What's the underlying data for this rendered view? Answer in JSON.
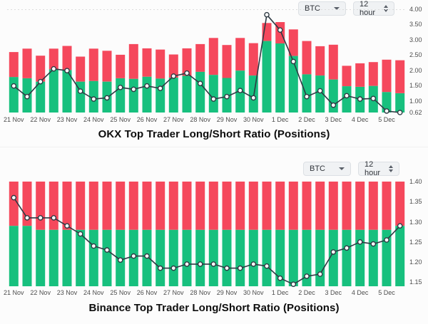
{
  "app": {
    "background": "#FCFCFC"
  },
  "ui": {
    "charts": [
      {
        "symbol": "BTC",
        "interval": "12 hour"
      },
      {
        "symbol": "BTC",
        "interval": "12 hour"
      }
    ]
  },
  "colors": {
    "long_green": "#17C07E",
    "short_red": "#F5485C",
    "ratio_line": "#2E3A43",
    "marker_fill": "#FFFFFF",
    "grid_dash": "#DCDCDC",
    "tick_text": "#4d4d4d"
  },
  "chart_data": [
    {
      "type": "bar",
      "variant": "stacked-bar-with-line",
      "title": "OKX Top Trader Long/Short Ratio (Positions)",
      "categories": [
        "21 Nov",
        "22 Nov",
        "23 Nov",
        "24 Nov",
        "25 Nov",
        "26 Nov",
        "27 Nov",
        "28 Nov",
        "29 Nov",
        "30 Nov",
        "1 Dec",
        "2 Dec",
        "3 Dec",
        "4 Dec",
        "5 Dec"
      ],
      "bars_per_category": 2,
      "ylim": [
        0.62,
        4.0
      ],
      "yticks": [
        4.0,
        3.5,
        3.0,
        2.5,
        2.0,
        1.5,
        1.0,
        0.62
      ],
      "ytick_labels": [
        "4.00",
        "3.50",
        "3.00",
        "2.50",
        "2.00",
        "1.50",
        "1.00",
        "0.62"
      ],
      "axis_side": "right",
      "grid": "dashed-top-gridline-only",
      "legend": "none",
      "series": [
        {
          "name": "Long (green, bottom segment top value)",
          "color": "#17C07E",
          "values": [
            1.78,
            1.74,
            1.63,
            2.03,
            2.01,
            1.63,
            1.65,
            1.63,
            1.74,
            1.72,
            1.79,
            1.73,
            1.76,
            1.82,
            1.95,
            1.85,
            1.75,
            1.99,
            1.83,
            2.96,
            2.88,
            2.47,
            1.87,
            1.83,
            1.7,
            1.48,
            1.46,
            1.49,
            1.29,
            1.25
          ]
        },
        {
          "name": "Short (red, stacked bar total top value)",
          "color": "#F5485C",
          "values": [
            2.6,
            2.71,
            2.48,
            2.71,
            2.8,
            2.45,
            2.71,
            2.64,
            2.51,
            2.86,
            2.72,
            2.68,
            2.52,
            2.72,
            2.86,
            3.06,
            2.83,
            3.06,
            2.89,
            3.55,
            3.58,
            3.34,
            2.96,
            2.79,
            2.84,
            2.15,
            2.23,
            2.27,
            2.35,
            2.33
          ]
        },
        {
          "name": "Long/Short ratio line",
          "color": "#2E3A43",
          "values": [
            1.49,
            1.14,
            1.63,
            2.05,
            1.99,
            1.32,
            1.06,
            1.1,
            1.44,
            1.38,
            1.49,
            1.41,
            1.81,
            1.91,
            1.57,
            1.06,
            1.14,
            1.34,
            1.1,
            3.82,
            3.32,
            2.29,
            1.14,
            1.33,
            0.86,
            1.17,
            1.06,
            1.08,
            0.67,
            0.62
          ]
        }
      ]
    },
    {
      "type": "bar",
      "variant": "stacked-bar-with-line",
      "title": "Binance Top Trader Long/Short Ratio (Positions)",
      "categories": [
        "21 Nov",
        "22 Nov",
        "23 Nov",
        "24 Nov",
        "25 Nov",
        "26 Nov",
        "27 Nov",
        "28 Nov",
        "29 Nov",
        "30 Nov",
        "1 Dec",
        "2 Dec",
        "3 Dec",
        "4 Dec",
        "5 Dec"
      ],
      "bars_per_category": 2,
      "ylim": [
        1.14,
        1.4
      ],
      "yticks": [
        1.4,
        1.35,
        1.3,
        1.25,
        1.2,
        1.15
      ],
      "ytick_labels": [
        "1.40",
        "1.35",
        "1.30",
        "1.25",
        "1.20",
        "1.15"
      ],
      "axis_side": "right",
      "grid": "none",
      "legend": "none",
      "series": [
        {
          "name": "Long (green, bottom segment top value)",
          "color": "#17C07E",
          "values": [
            1.29,
            1.29,
            1.28,
            1.28,
            1.28,
            1.28,
            1.28,
            1.28,
            1.28,
            1.28,
            1.28,
            1.28,
            1.28,
            1.28,
            1.28,
            1.28,
            1.28,
            1.28,
            1.28,
            1.28,
            1.28,
            1.28,
            1.28,
            1.28,
            1.28,
            1.28,
            1.28,
            1.28,
            1.28,
            1.29
          ]
        },
        {
          "name": "Short (red, stacked bar total top value)",
          "color": "#F5485C",
          "values": [
            1.4,
            1.4,
            1.4,
            1.4,
            1.4,
            1.4,
            1.4,
            1.4,
            1.4,
            1.4,
            1.4,
            1.4,
            1.4,
            1.4,
            1.4,
            1.4,
            1.4,
            1.4,
            1.4,
            1.4,
            1.4,
            1.4,
            1.4,
            1.4,
            1.4,
            1.4,
            1.4,
            1.4,
            1.4,
            1.4
          ]
        },
        {
          "name": "Long/Short ratio line",
          "color": "#2E3A43",
          "values": [
            1.36,
            1.31,
            1.31,
            1.31,
            1.29,
            1.27,
            1.24,
            1.23,
            1.205,
            1.215,
            1.215,
            1.185,
            1.185,
            1.195,
            1.195,
            1.195,
            1.185,
            1.185,
            1.195,
            1.19,
            1.16,
            1.145,
            1.165,
            1.17,
            1.225,
            1.235,
            1.25,
            1.245,
            1.255,
            1.29
          ]
        }
      ]
    }
  ]
}
